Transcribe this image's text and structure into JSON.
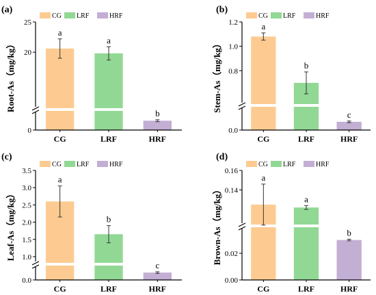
{
  "colors": {
    "CG": "#FDCB91",
    "LRF": "#92D895",
    "HRF": "#C3AED4",
    "axis": "#000000",
    "break_gap": "#ffffff"
  },
  "chart_data": [
    {
      "panel_label": "(a)",
      "type": "bar",
      "ylabel": "Root-As（mg/kg）",
      "categories": [
        "CG",
        "LRF",
        "HRF"
      ],
      "values": [
        20.6,
        19.8,
        1.9
      ],
      "errors": [
        1.6,
        1.1,
        0.2
      ],
      "letters": [
        "a",
        "a",
        "b"
      ],
      "y_axis_break": true,
      "y_ticks_lower": [
        "0"
      ],
      "y_ticks_upper": [
        "20",
        "25"
      ],
      "legend": [
        "CG",
        "LRF",
        "HRF"
      ]
    },
    {
      "panel_label": "(b)",
      "type": "bar",
      "ylabel": "Stem-As（mg/kg）",
      "categories": [
        "CG",
        "LRF",
        "HRF"
      ],
      "values": [
        1.08,
        0.7,
        0.05
      ],
      "errors": [
        0.03,
        0.09,
        0.005
      ],
      "letters": [
        "a",
        "b",
        "c"
      ],
      "y_axis_break": true,
      "y_ticks_lower": [
        "0.0"
      ],
      "y_ticks_upper": [
        "0.8",
        "1.0",
        "1.2"
      ],
      "legend": [
        "CG",
        "LRF",
        "HRF"
      ]
    },
    {
      "panel_label": "(c)",
      "type": "bar",
      "ylabel": "Leaf-As（mg/kg）",
      "categories": [
        "CG",
        "LRF",
        "HRF"
      ],
      "values": [
        2.6,
        1.65,
        0.09
      ],
      "errors": [
        0.45,
        0.25,
        0.01
      ],
      "letters": [
        "a",
        "b",
        "c"
      ],
      "y_axis_break": true,
      "y_ticks_lower": [
        "0.0"
      ],
      "y_ticks_upper": [
        "1.0",
        "1.5",
        "2.0",
        "2.5",
        "3.0",
        "3.5"
      ],
      "legend": [
        "CG",
        "LRF",
        "HRF"
      ]
    },
    {
      "panel_label": "(d)",
      "type": "bar",
      "ylabel": "Brown-As（mg/kg）",
      "categories": [
        "CG",
        "LRF",
        "HRF"
      ],
      "values": [
        0.125,
        0.122,
        0.03
      ],
      "errors": [
        0.021,
        0.002,
        0.0006
      ],
      "letters": [
        "a",
        "a",
        "b"
      ],
      "y_axis_break": true,
      "y_ticks_lower": [
        "0.00",
        "0.02"
      ],
      "y_ticks_upper": [
        "0.14",
        "0.16"
      ],
      "legend": [
        "CG",
        "LRF",
        "HRF"
      ]
    }
  ]
}
